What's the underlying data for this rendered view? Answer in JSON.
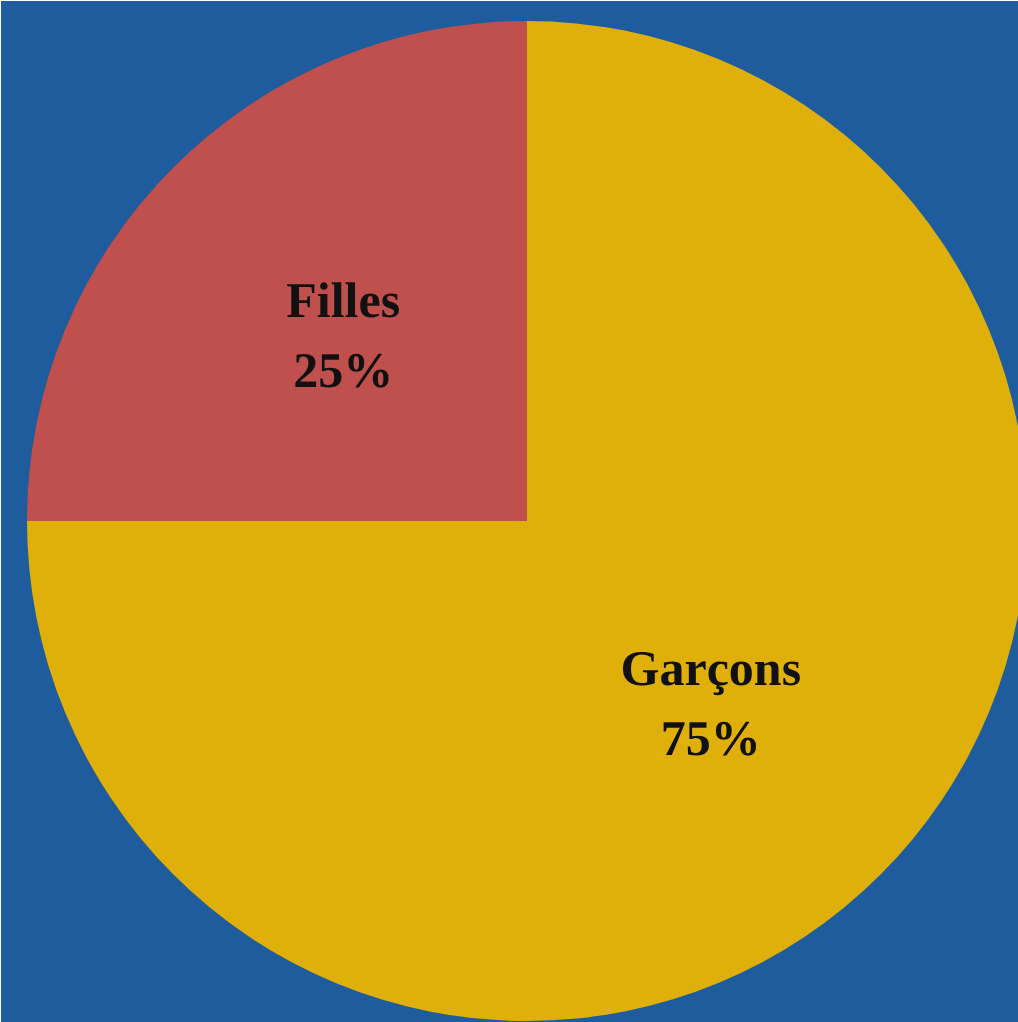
{
  "chart_data": {
    "type": "pie",
    "categories": [
      "Garçons",
      "Filles"
    ],
    "values": [
      75,
      25
    ],
    "colors": [
      "#e0b00a",
      "#c0504d"
    ],
    "value_labels": [
      "75%",
      "25%"
    ]
  }
}
